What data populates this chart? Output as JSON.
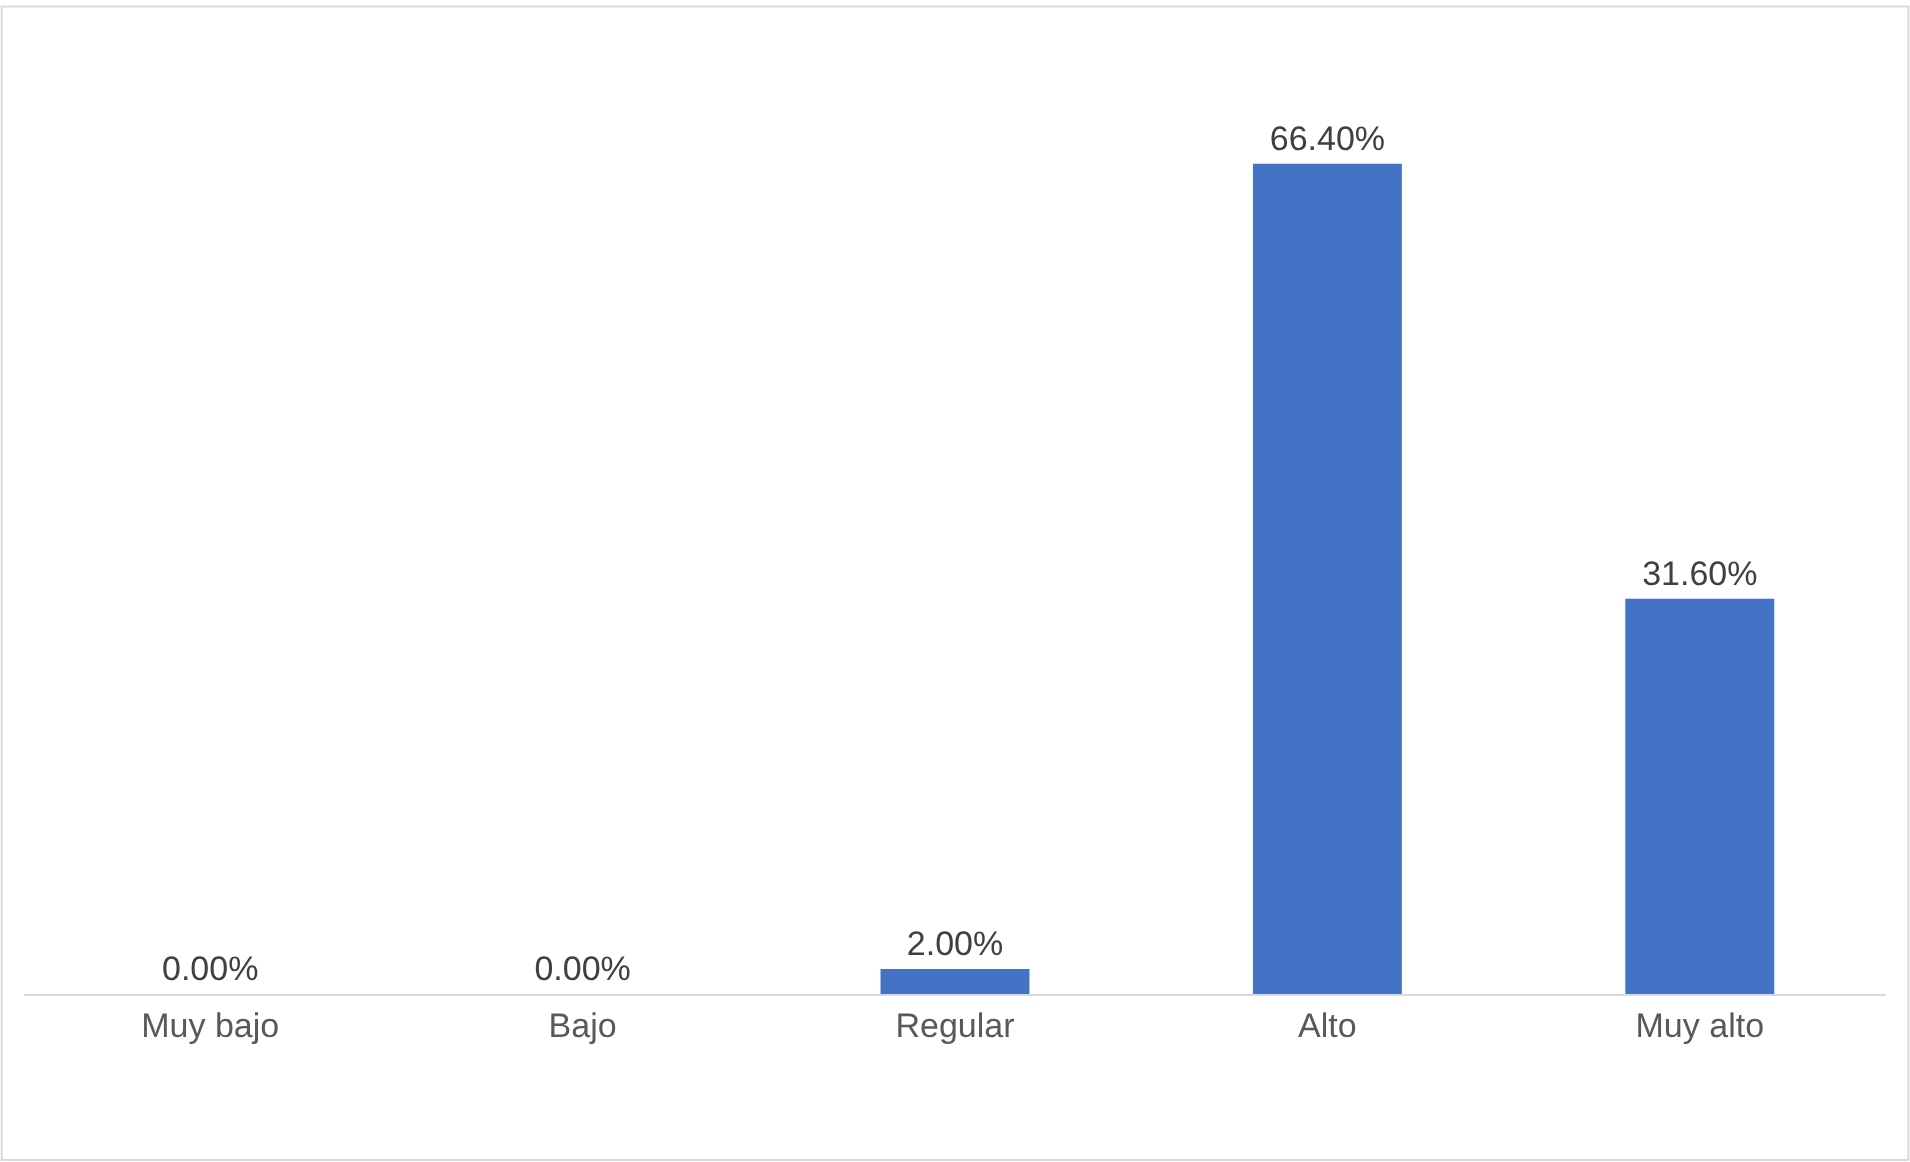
{
  "chart_data": {
    "type": "bar",
    "categories": [
      "Muy bajo",
      "Bajo",
      "Regular",
      "Alto",
      "Muy alto"
    ],
    "values": [
      0,
      0,
      2,
      66.4,
      31.6
    ],
    "value_labels": [
      "0.00%",
      "0.00%",
      "2.00%",
      "66.40%",
      "31.60%"
    ],
    "color": "#4472c4",
    "legend": false
  }
}
